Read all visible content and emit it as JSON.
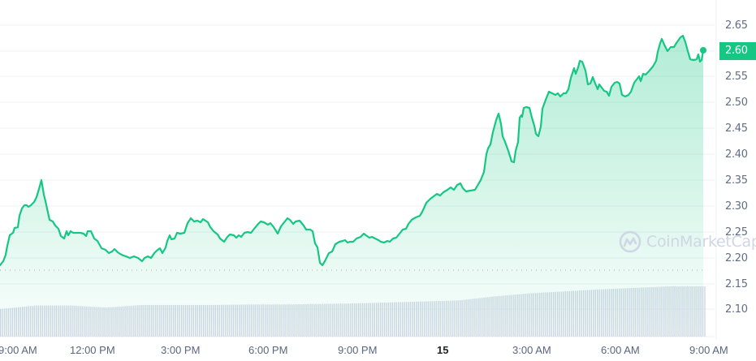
{
  "chart_data": {
    "type": "line",
    "title": "",
    "xlabel": "",
    "ylabel": "",
    "ylim": [
      2.05,
      2.68
    ],
    "grid": true,
    "legend": null,
    "x_ticks": [
      "9:00 AM",
      "12:00 PM",
      "3:00 PM",
      "6:00 PM",
      "9:00 PM",
      "15",
      "3:00 AM",
      "6:00 AM",
      "9:00 AM"
    ],
    "y_ticks": [
      2.65,
      2.6,
      2.55,
      2.5,
      2.45,
      2.4,
      2.35,
      2.3,
      2.25,
      2.2,
      2.15,
      2.1
    ],
    "current_price": 2.6,
    "reference_line_price": 2.177,
    "series": [
      {
        "name": "Price",
        "color": "#16c784",
        "x": [
          "9:00 AM",
          "10:00 AM",
          "11:00 AM",
          "12:00 PM",
          "1:00 PM",
          "2:00 PM",
          "3:00 PM",
          "4:00 PM",
          "5:00 PM",
          "6:00 PM",
          "7:00 PM",
          "8:00 PM",
          "9:00 PM",
          "10:00 PM",
          "11:00 PM",
          "12:00 AM",
          "1:00 AM",
          "2:00 AM",
          "3:00 AM",
          "4:00 AM",
          "5:00 AM",
          "6:00 AM",
          "7:00 AM",
          "8:00 AM",
          "9:00 AM"
        ],
        "values": [
          2.18,
          2.26,
          2.32,
          2.25,
          2.24,
          2.21,
          2.2,
          2.24,
          2.27,
          2.25,
          2.27,
          2.27,
          2.2,
          2.23,
          2.24,
          2.26,
          2.32,
          2.33,
          2.42,
          2.48,
          2.52,
          2.55,
          2.54,
          2.62,
          2.6
        ]
      },
      {
        "name": "Volume",
        "color": "#cfd6e4",
        "type": "bar",
        "trend": "gradually increasing",
        "relative_values": [
          0.55,
          0.62,
          0.62,
          0.58,
          0.63,
          0.63,
          0.63,
          0.64,
          0.64,
          0.65,
          0.66,
          0.68,
          0.7,
          0.72,
          0.8,
          0.86,
          0.9,
          0.94,
          0.97,
          1.0
        ]
      }
    ]
  },
  "watermark": {
    "label": "CoinMarketCap",
    "icon": "coinmarketcap-logo-icon"
  },
  "badge": {
    "label": "2.60",
    "color": "#16c784"
  },
  "axis": {
    "y": [
      "2.65",
      "2.55",
      "2.50",
      "2.45",
      "2.40",
      "2.35",
      "2.30",
      "2.25",
      "2.20",
      "2.15",
      "2.10"
    ],
    "x": [
      "9:00 AM",
      "12:00 PM",
      "3:00 PM",
      "6:00 PM",
      "9:00 PM",
      "15",
      "3:00 AM",
      "6:00 AM",
      "9:00 AM"
    ]
  },
  "colors": {
    "line": "#16c784",
    "fill_top": "#16c784",
    "grid": "#eff2f5",
    "volume": "#cfd6e4",
    "axis_text": "#616e85"
  }
}
